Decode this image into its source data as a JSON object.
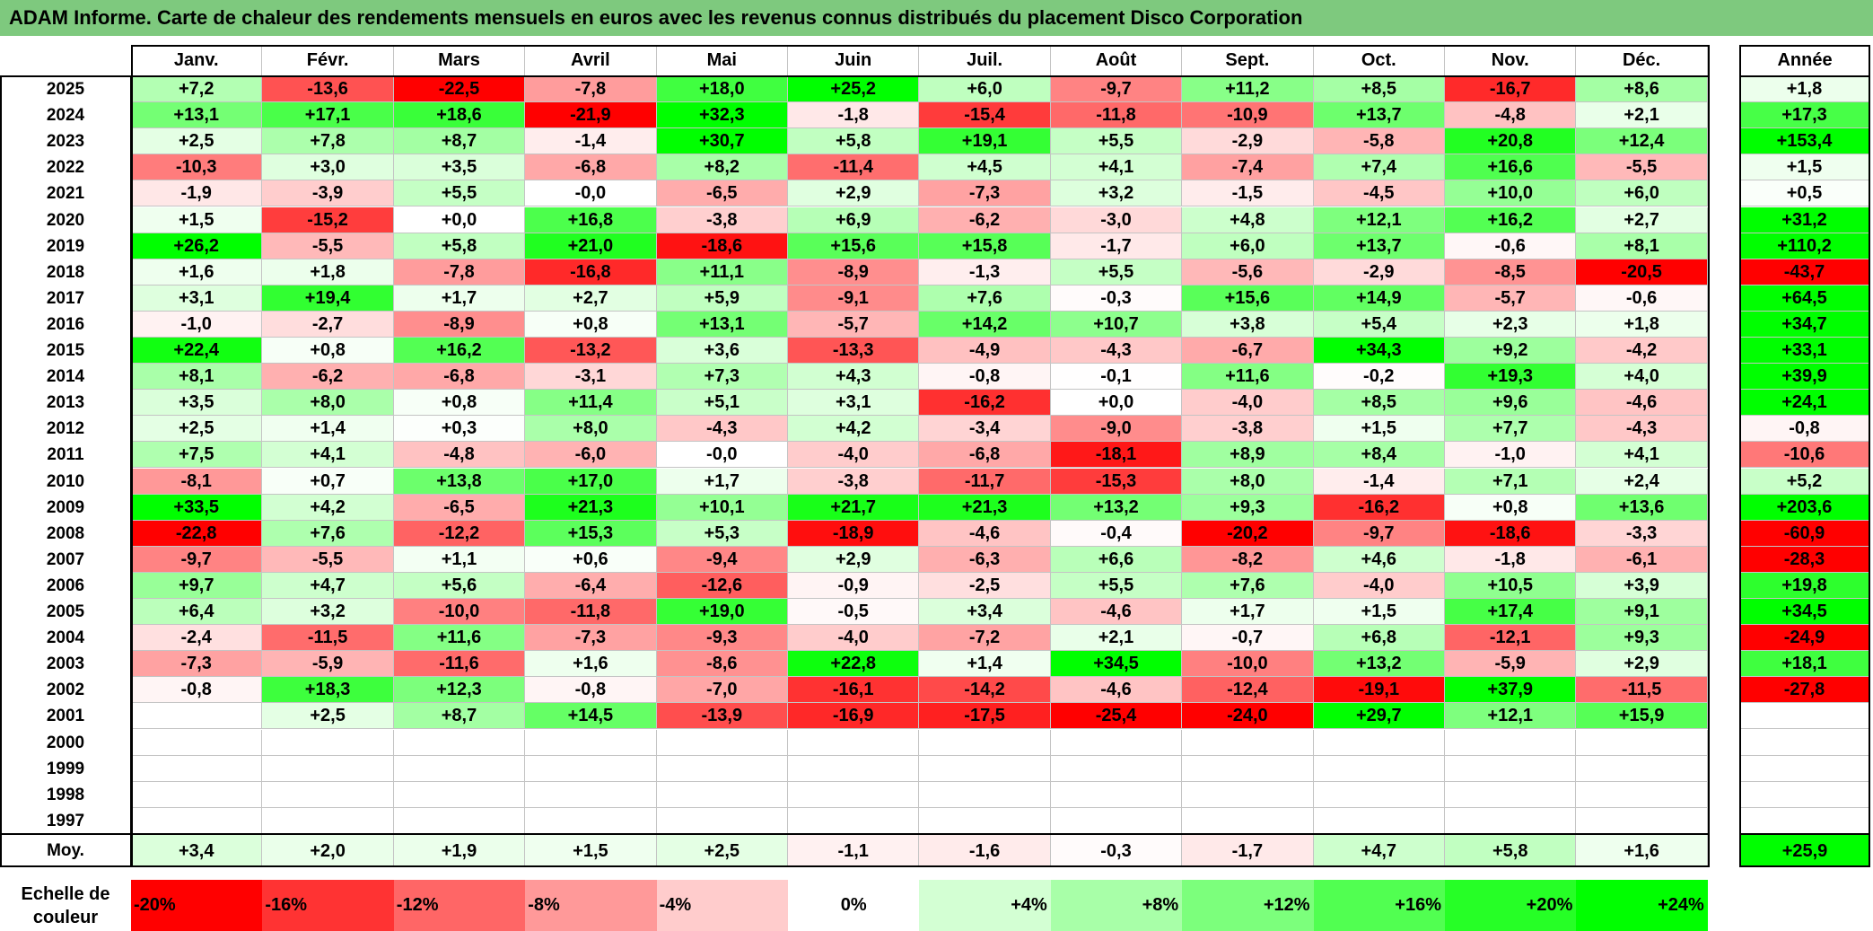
{
  "title": "ADAM Informe. Carte de chaleur des rendements mensuels en euros avec les revenus connus distribués du placement Disco Corporation",
  "chart_data": {
    "type": "heatmap",
    "title": "ADAM Informe. Carte de chaleur des rendements mensuels en euros avec les revenus connus distribués du placement Disco Corporation",
    "months": [
      "Janv.",
      "Févr.",
      "Mars",
      "Avril",
      "Mai",
      "Juin",
      "Juil.",
      "Août",
      "Sept.",
      "Oct.",
      "Nov.",
      "Déc."
    ],
    "year_header": "Année",
    "years": [
      "2025",
      "2024",
      "2023",
      "2022",
      "2021",
      "2020",
      "2019",
      "2018",
      "2017",
      "2016",
      "2015",
      "2014",
      "2013",
      "2012",
      "2011",
      "2010",
      "2009",
      "2008",
      "2007",
      "2006",
      "2005",
      "2004",
      "2003",
      "2002",
      "2001",
      "2000",
      "1999",
      "1998",
      "1997"
    ],
    "values": [
      [
        "+7,2",
        "-13,6",
        "-22,5",
        "-7,8",
        "+18,0",
        "+25,2",
        "+6,0",
        "-9,7",
        "+11,2",
        "+8,5",
        "-16,7",
        "+8,6"
      ],
      [
        "+13,1",
        "+17,1",
        "+18,6",
        "-21,9",
        "+32,3",
        "-1,8",
        "-15,4",
        "-11,8",
        "-10,9",
        "+13,7",
        "-4,8",
        "+2,1"
      ],
      [
        "+2,5",
        "+7,8",
        "+8,7",
        "-1,4",
        "+30,7",
        "+5,8",
        "+19,1",
        "+5,5",
        "-2,9",
        "-5,8",
        "+20,8",
        "+12,4"
      ],
      [
        "-10,3",
        "+3,0",
        "+3,5",
        "-6,8",
        "+8,2",
        "-11,4",
        "+4,5",
        "+4,1",
        "-7,4",
        "+7,4",
        "+16,6",
        "-5,5"
      ],
      [
        "-1,9",
        "-3,9",
        "+5,5",
        "-0,0",
        "-6,5",
        "+2,9",
        "-7,3",
        "+3,2",
        "-1,5",
        "-4,5",
        "+10,0",
        "+6,0"
      ],
      [
        "+1,5",
        "-15,2",
        "+0,0",
        "+16,8",
        "-3,8",
        "+6,9",
        "-6,2",
        "-3,0",
        "+4,8",
        "+12,1",
        "+16,2",
        "+2,7"
      ],
      [
        "+26,2",
        "-5,5",
        "+5,8",
        "+21,0",
        "-18,6",
        "+15,6",
        "+15,8",
        "-1,7",
        "+6,0",
        "+13,7",
        "-0,6",
        "+8,1"
      ],
      [
        "+1,6",
        "+1,8",
        "-7,8",
        "-16,8",
        "+11,1",
        "-8,9",
        "-1,3",
        "+5,5",
        "-5,6",
        "-2,9",
        "-8,5",
        "-20,5"
      ],
      [
        "+3,1",
        "+19,4",
        "+1,7",
        "+2,7",
        "+5,9",
        "-9,1",
        "+7,6",
        "-0,3",
        "+15,6",
        "+14,9",
        "-5,7",
        "-0,6"
      ],
      [
        "-1,0",
        "-2,7",
        "-8,9",
        "+0,8",
        "+13,1",
        "-5,7",
        "+14,2",
        "+10,7",
        "+3,8",
        "+5,4",
        "+2,3",
        "+1,8"
      ],
      [
        "+22,4",
        "+0,8",
        "+16,2",
        "-13,2",
        "+3,6",
        "-13,3",
        "-4,9",
        "-4,3",
        "-6,7",
        "+34,3",
        "+9,2",
        "-4,2"
      ],
      [
        "+8,1",
        "-6,2",
        "-6,8",
        "-3,1",
        "+7,3",
        "+4,3",
        "-0,8",
        "-0,1",
        "+11,6",
        "-0,2",
        "+19,3",
        "+4,0"
      ],
      [
        "+3,5",
        "+8,0",
        "+0,8",
        "+11,4",
        "+5,1",
        "+3,1",
        "-16,2",
        "+0,0",
        "-4,0",
        "+8,5",
        "+9,6",
        "-4,6"
      ],
      [
        "+2,5",
        "+1,4",
        "+0,3",
        "+8,0",
        "-4,3",
        "+4,2",
        "-3,4",
        "-9,0",
        "-3,8",
        "+1,5",
        "+7,7",
        "-4,3"
      ],
      [
        "+7,5",
        "+4,1",
        "-4,8",
        "-6,0",
        "-0,0",
        "-4,0",
        "-6,8",
        "-18,1",
        "+8,9",
        "+8,4",
        "-1,0",
        "+4,1"
      ],
      [
        "-8,1",
        "+0,7",
        "+13,8",
        "+17,0",
        "+1,7",
        "-3,8",
        "-11,7",
        "-15,3",
        "+8,0",
        "-1,4",
        "+7,1",
        "+2,4"
      ],
      [
        "+33,5",
        "+4,2",
        "-6,5",
        "+21,3",
        "+10,1",
        "+21,7",
        "+21,3",
        "+13,2",
        "+9,3",
        "-16,2",
        "+0,8",
        "+13,6"
      ],
      [
        "-22,8",
        "+7,6",
        "-12,2",
        "+15,3",
        "+5,3",
        "-18,9",
        "-4,6",
        "-0,4",
        "-20,2",
        "-9,7",
        "-18,6",
        "-3,3"
      ],
      [
        "-9,7",
        "-5,5",
        "+1,1",
        "+0,6",
        "-9,4",
        "+2,9",
        "-6,3",
        "+6,6",
        "-8,2",
        "+4,6",
        "-1,8",
        "-6,1"
      ],
      [
        "+9,7",
        "+4,7",
        "+5,6",
        "-6,4",
        "-12,6",
        "-0,9",
        "-2,5",
        "+5,5",
        "+7,6",
        "-4,0",
        "+10,5",
        "+3,9"
      ],
      [
        "+6,4",
        "+3,2",
        "-10,0",
        "-11,8",
        "+19,0",
        "-0,5",
        "+3,4",
        "-4,6",
        "+1,7",
        "+1,5",
        "+17,4",
        "+9,1"
      ],
      [
        "-2,4",
        "-11,5",
        "+11,6",
        "-7,3",
        "-9,3",
        "-4,0",
        "-7,2",
        "+2,1",
        "-0,7",
        "+6,8",
        "-12,1",
        "+9,3"
      ],
      [
        "-7,3",
        "-5,9",
        "-11,6",
        "+1,6",
        "-8,6",
        "+22,8",
        "+1,4",
        "+34,5",
        "-10,0",
        "+13,2",
        "-5,9",
        "+2,9"
      ],
      [
        "-0,8",
        "+18,3",
        "+12,3",
        "-0,8",
        "-7,0",
        "-16,1",
        "-14,2",
        "-4,6",
        "-12,4",
        "-19,1",
        "+37,9",
        "-11,5"
      ],
      [
        "",
        "+2,5",
        "+8,7",
        "+14,5",
        "-13,9",
        "-16,9",
        "-17,5",
        "-25,4",
        "-24,0",
        "+29,7",
        "+12,1",
        "+15,9"
      ],
      [
        "",
        "",
        "",
        "",
        "",
        "",
        "",
        "",
        "",
        "",
        "",
        ""
      ],
      [
        "",
        "",
        "",
        "",
        "",
        "",
        "",
        "",
        "",
        "",
        "",
        ""
      ],
      [
        "",
        "",
        "",
        "",
        "",
        "",
        "",
        "",
        "",
        "",
        "",
        ""
      ],
      [
        "",
        "",
        "",
        "",
        "",
        "",
        "",
        "",
        "",
        "",
        "",
        ""
      ]
    ],
    "year_totals": [
      "+1,8",
      "+17,3",
      "+153,4",
      "+1,5",
      "+0,5",
      "+31,2",
      "+110,2",
      "-43,7",
      "+64,5",
      "+34,7",
      "+33,1",
      "+39,9",
      "+24,1",
      "-0,8",
      "-10,6",
      "+5,2",
      "+203,6",
      "-60,9",
      "-28,3",
      "+19,8",
      "+34,5",
      "-24,9",
      "+18,1",
      "-27,8",
      "",
      "",
      "",
      "",
      ""
    ],
    "average_label": "Moy.",
    "monthly_averages": [
      "+3,4",
      "+2,0",
      "+1,9",
      "+1,5",
      "+2,5",
      "-1,1",
      "-1,6",
      "-0,3",
      "-1,7",
      "+4,7",
      "+5,8",
      "+1,6"
    ],
    "overall_average": "+25,9",
    "color_scale_label": "Echelle de couleur",
    "color_scale": [
      {
        "label": "-20%",
        "value": -20,
        "color": "#ff0000"
      },
      {
        "label": "-16%",
        "value": -16,
        "color": "#ff3333"
      },
      {
        "label": "-12%",
        "value": -12,
        "color": "#ff6666"
      },
      {
        "label": "-8%",
        "value": -8,
        "color": "#ff9999"
      },
      {
        "label": "-4%",
        "value": -4,
        "color": "#ffcccc"
      },
      {
        "label": "0%",
        "value": 0,
        "color": "#ffffff"
      },
      {
        "label": "+4%",
        "value": 4,
        "color": "#d3ffd3"
      },
      {
        "label": "+8%",
        "value": 8,
        "color": "#a8ffa8"
      },
      {
        "label": "+12%",
        "value": 12,
        "color": "#7cff7c"
      },
      {
        "label": "+16%",
        "value": 16,
        "color": "#51ff51"
      },
      {
        "label": "+20%",
        "value": 20,
        "color": "#26ff26"
      },
      {
        "label": "+24%",
        "value": 24,
        "color": "#00ff00"
      }
    ]
  }
}
